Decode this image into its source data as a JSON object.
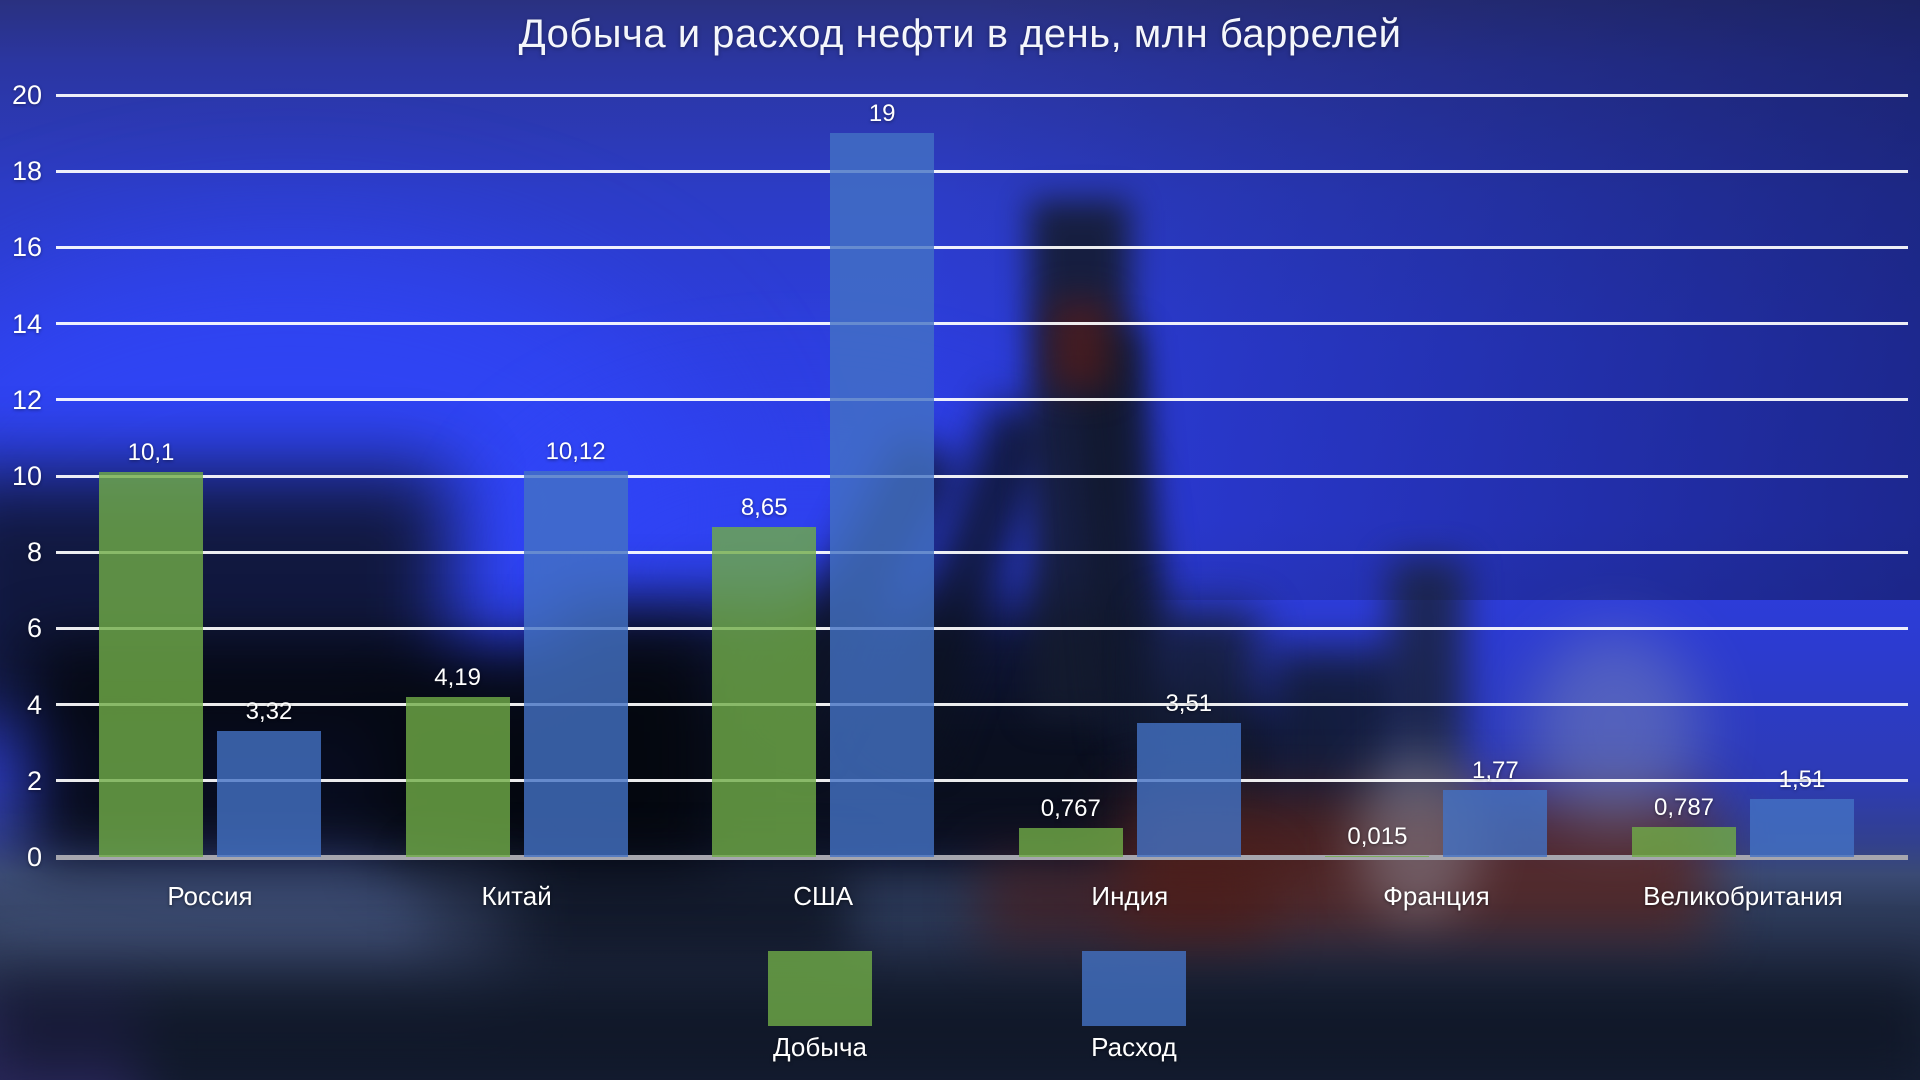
{
  "title": "Добыча и расход нефти в день, млн баррелей",
  "chart_data": {
    "type": "bar",
    "title": "Добыча и расход нефти в день, млн баррелей",
    "categories": [
      "Россия",
      "Китай",
      "США",
      "Индия",
      "Франция",
      "Великобритания"
    ],
    "series": [
      {
        "name": "Добыча",
        "color": "#70AD47",
        "fill": "rgba(112,173,71,0.8)",
        "values": [
          10.1,
          4.19,
          8.65,
          0.767,
          0.015,
          0.787
        ],
        "labels": [
          "10,1",
          "4,19",
          "8,65",
          "0,767",
          "0,015",
          "0,787"
        ]
      },
      {
        "name": "Расход",
        "color": "#4472C4",
        "fill": "rgba(68,114,196,0.8)",
        "values": [
          3.32,
          10.12,
          19,
          3.51,
          1.77,
          1.51
        ],
        "labels": [
          "3,32",
          "10,12",
          "19",
          "3,51",
          "1,77",
          "1,51"
        ]
      }
    ],
    "xlabel": "",
    "ylabel": "",
    "ylim": [
      0,
      20
    ],
    "yticks": [
      0,
      2,
      4,
      6,
      8,
      10,
      12,
      14,
      16,
      18,
      20
    ],
    "grid": true,
    "legend_position": "bottom"
  },
  "legend": {
    "items": [
      {
        "label": "Добыча",
        "color": "#70AD47",
        "fill": "rgba(112,173,71,0.8)"
      },
      {
        "label": "Расход",
        "color": "#4472C4",
        "fill": "rgba(68,114,196,0.8)"
      }
    ]
  }
}
